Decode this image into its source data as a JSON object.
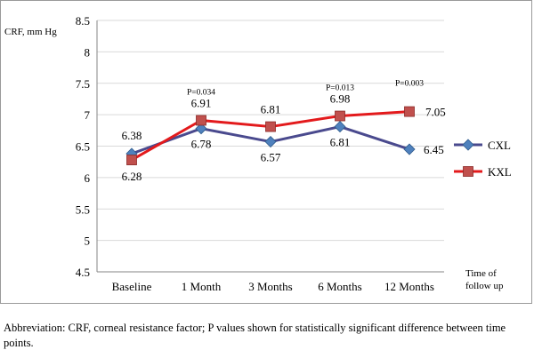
{
  "chart_data": {
    "type": "line",
    "ylabel": "CRF, mm Hg",
    "xlabel_lines": [
      "Time of",
      "follow up"
    ],
    "categories": [
      "Baseline",
      "1 Month",
      "3 Months",
      "6 Months",
      "12 Months"
    ],
    "ylim": [
      4.5,
      8.5
    ],
    "yticks": [
      "4.5",
      "5",
      "5.5",
      "6",
      "6.5",
      "7",
      "7.5",
      "8",
      "8.5"
    ],
    "grid": true,
    "legend_position": "right",
    "series": [
      {
        "name": "CXL",
        "marker": "diamond",
        "color": "#4a4a8e",
        "marker_color": "#4f81bd",
        "values": [
          6.38,
          6.78,
          6.57,
          6.81,
          6.45
        ],
        "labels": [
          "6.38",
          "6.78",
          "6.57",
          "6.81",
          "6.45"
        ]
      },
      {
        "name": "KXL",
        "marker": "square",
        "color": "#e31a1c",
        "marker_color": "#c0504d",
        "values": [
          6.28,
          6.91,
          6.81,
          6.98,
          7.05
        ],
        "labels": [
          "6.28",
          "6.91",
          "6.81",
          "6.98",
          "7.05"
        ]
      }
    ],
    "annotations": [
      {
        "category": "1 Month",
        "text": "P=0.034"
      },
      {
        "category": "6 Months",
        "text": "P=0.013"
      },
      {
        "category": "12 Months",
        "text": "P=0.003"
      }
    ]
  },
  "caption": "Abbreviation: CRF, corneal resistance factor; P values shown for statistically significant difference between time points."
}
